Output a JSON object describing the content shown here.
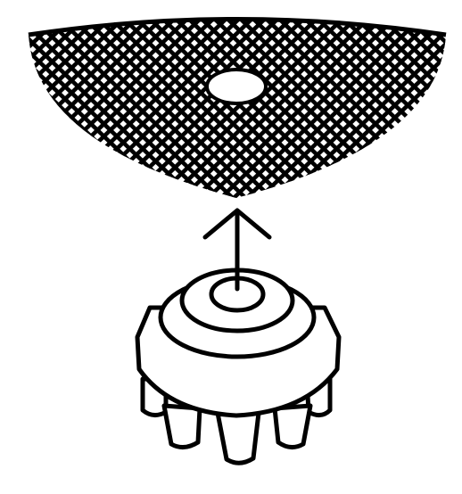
{
  "diagram": {
    "type": "assembly-illustration",
    "components": [
      {
        "name": "mesh-screen",
        "pattern": "diagonal-crosshatch",
        "feature": "center-hole"
      },
      {
        "name": "direction-arrow",
        "direction": "up"
      },
      {
        "name": "spiked-base",
        "rings": 3,
        "legs": "conical-tapered"
      }
    ],
    "colors": {
      "stroke": "#000000",
      "fill": "#ffffff",
      "background": "#ffffff"
    }
  }
}
